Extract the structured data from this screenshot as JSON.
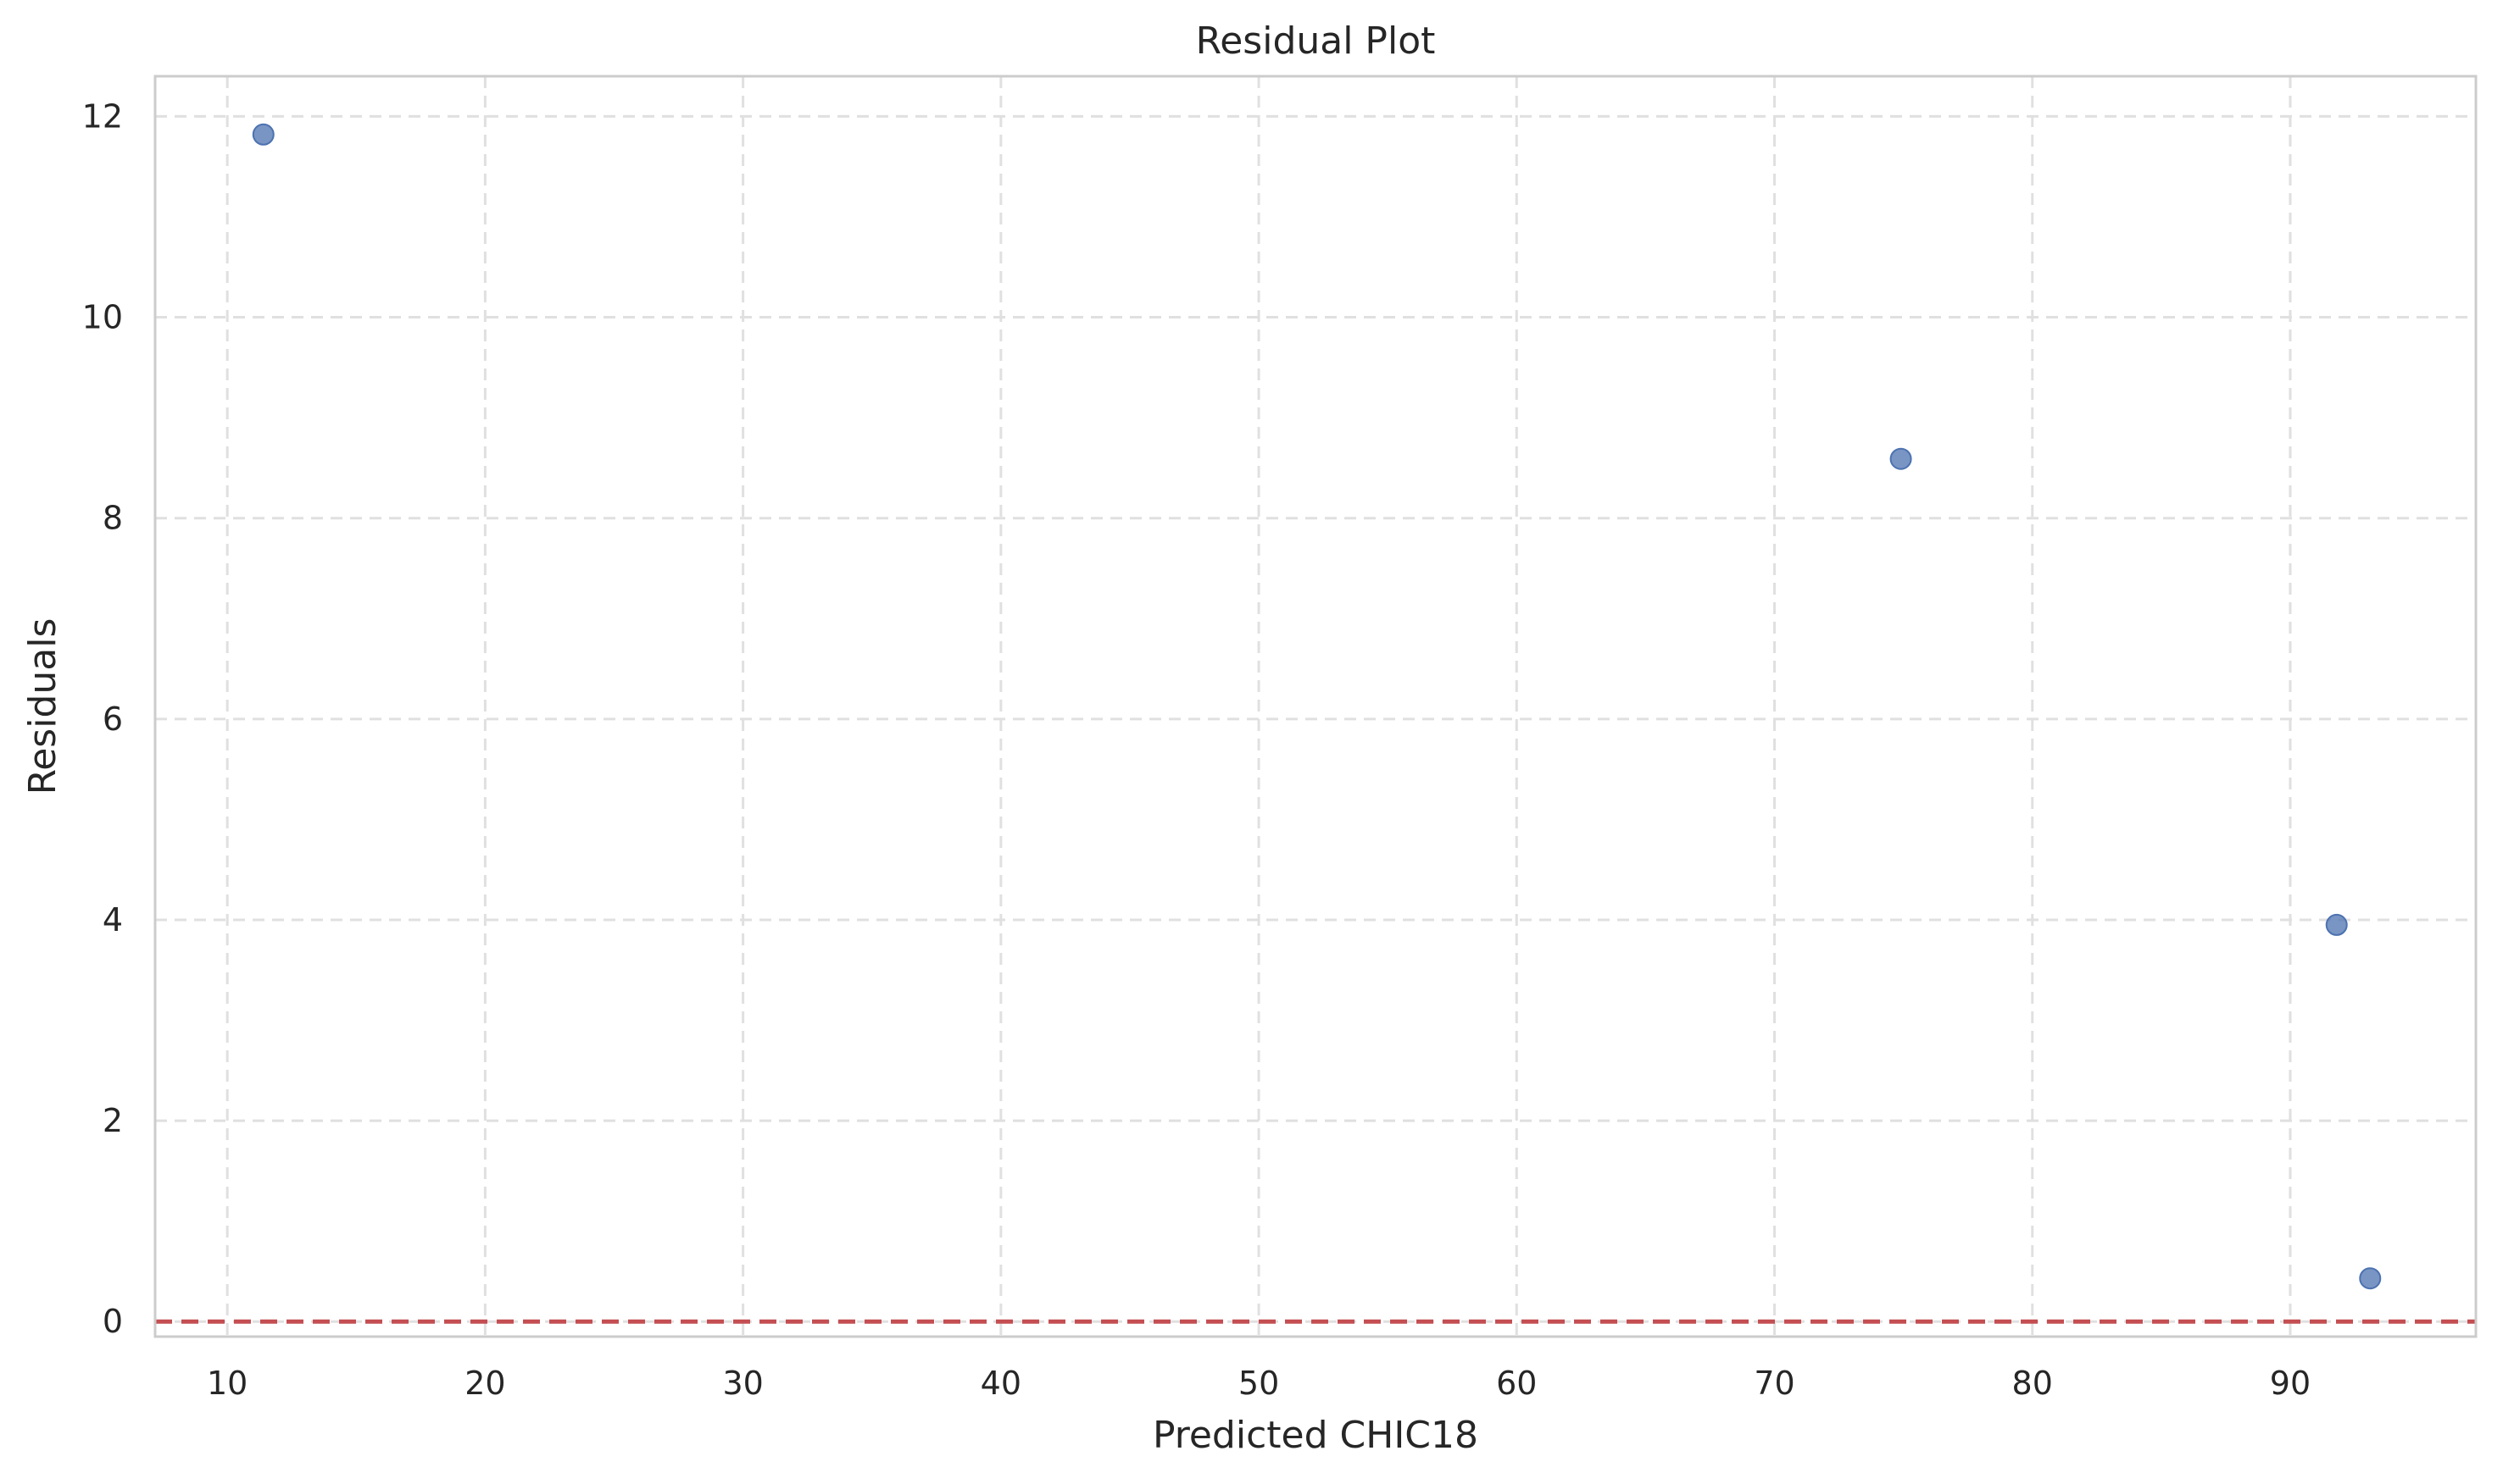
{
  "chart_data": {
    "type": "scatter",
    "title": "Residual Plot",
    "xlabel": "Predicted CHIC18",
    "ylabel": "Residuals",
    "xlim": [
      7.2,
      97.2
    ],
    "ylim": [
      -0.15,
      12.4
    ],
    "xticks": [
      10,
      20,
      30,
      40,
      50,
      60,
      70,
      80,
      90
    ],
    "yticks": [
      0,
      2,
      4,
      6,
      8,
      10,
      12
    ],
    "grid": true,
    "series": [
      {
        "points": [
          {
            "x": 11.4,
            "y": 11.82
          },
          {
            "x": 74.9,
            "y": 8.59
          },
          {
            "x": 91.8,
            "y": 3.95
          },
          {
            "x": 93.1,
            "y": 0.43
          }
        ],
        "color": "#4c72b0"
      }
    ],
    "reference_line": {
      "y": 0,
      "color": "#c44e52",
      "style": "dashed"
    }
  }
}
